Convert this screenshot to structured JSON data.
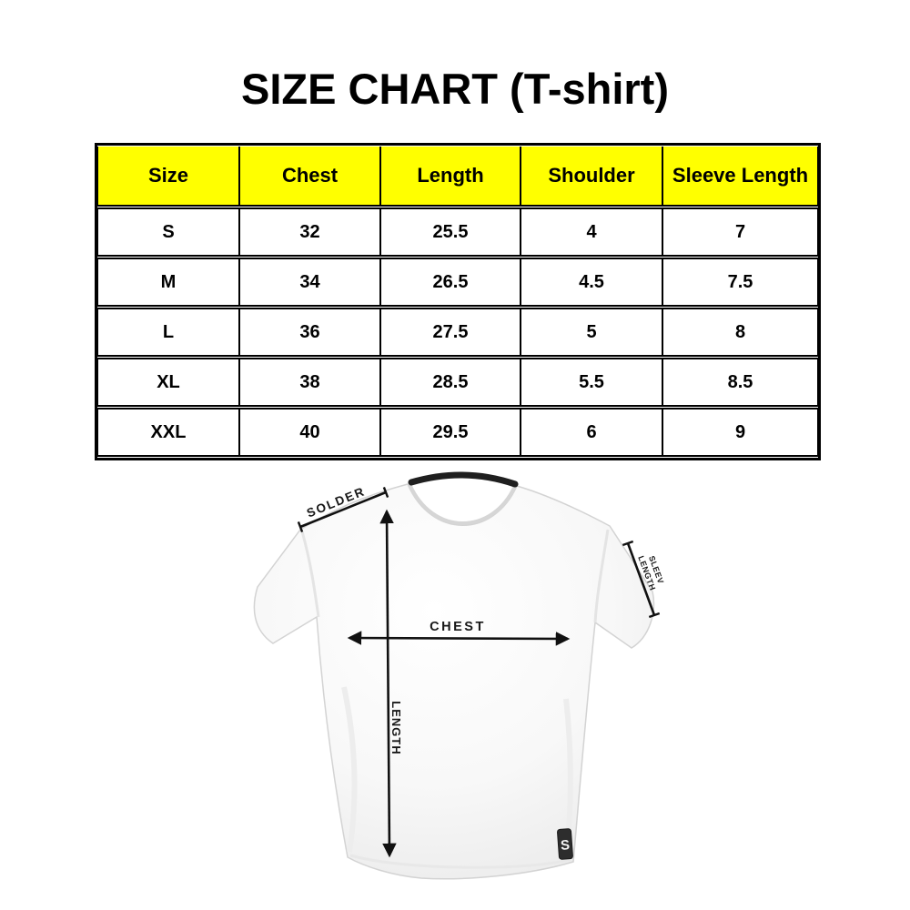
{
  "title": "SIZE CHART (T-shirt)",
  "table": {
    "headers": [
      "Size",
      "Chest",
      "Length",
      "Shoulder",
      "Sleeve Length"
    ],
    "rows": [
      [
        "S",
        "32",
        "25.5",
        "4",
        "7"
      ],
      [
        "M",
        "34",
        "26.5",
        "4.5",
        "7.5"
      ],
      [
        "L",
        "36",
        "27.5",
        "5",
        "8"
      ],
      [
        "XL",
        "38",
        "28.5",
        "5.5",
        "8.5"
      ],
      [
        "XXL",
        "40",
        "29.5",
        "6",
        "9"
      ]
    ],
    "header_bg": "#ffff00",
    "border_color": "#000000"
  },
  "diagram": {
    "shoulder_label": "SOLDER",
    "sleeve_label_line1": "SLEEV",
    "sleeve_label_line2": "LENGTH",
    "chest_label": "CHEST",
    "length_label": "LENGTH",
    "hem_tag_letter": "S",
    "shirt_fill": "#f7f7f7",
    "collar_color": "#1f1f1f",
    "annotation_color": "#111111"
  },
  "chart_data": {
    "type": "table",
    "title": "SIZE CHART (T-shirt)",
    "columns": [
      "Size",
      "Chest",
      "Length",
      "Shoulder",
      "Sleeve Length"
    ],
    "rows": [
      [
        "S",
        32,
        25.5,
        4,
        7
      ],
      [
        "M",
        34,
        26.5,
        4.5,
        7.5
      ],
      [
        "L",
        36,
        27.5,
        5,
        8
      ],
      [
        "XL",
        38,
        28.5,
        5.5,
        8.5
      ],
      [
        "XXL",
        40,
        29.5,
        6,
        9
      ]
    ],
    "header_background": "#ffff00",
    "diagram_annotations": [
      "SOLDER",
      "SLEEV LENGTH",
      "CHEST",
      "LENGTH"
    ]
  }
}
